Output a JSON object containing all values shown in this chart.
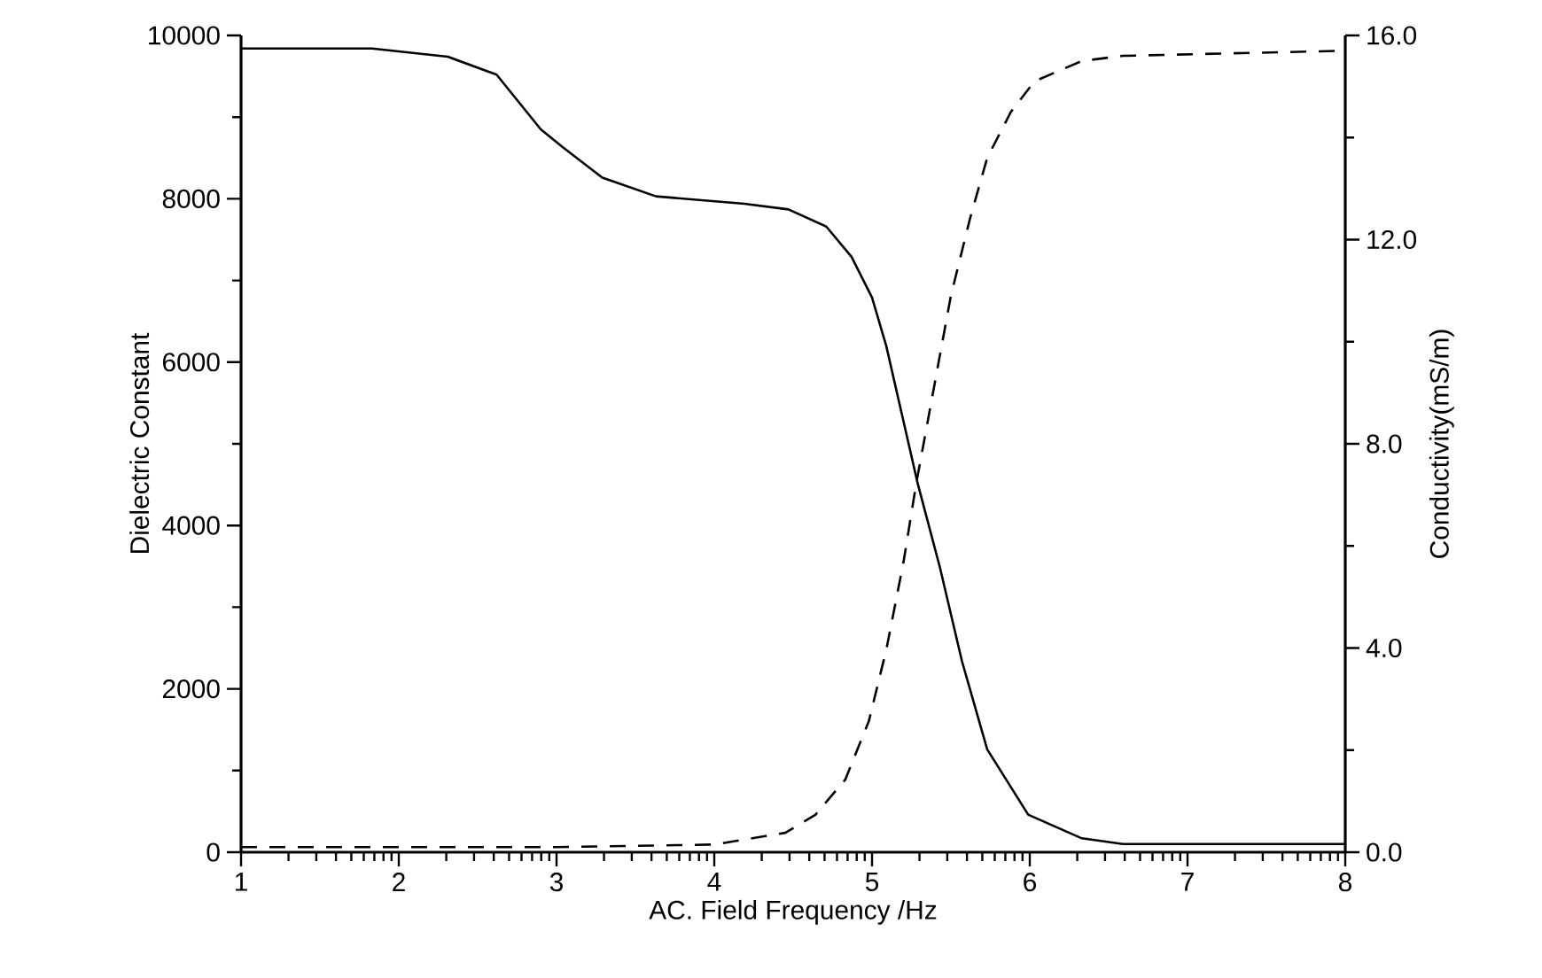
{
  "chart_data": {
    "type": "line",
    "xlabel": "AC. Field Frequency /Hz",
    "ylabel": "Dielectric Constant",
    "y2label": "Conductivity(mS/m)",
    "xlim": [
      1,
      8
    ],
    "ylim": [
      0,
      10000
    ],
    "y2lim": [
      0,
      16
    ],
    "xticks": [
      1,
      2,
      3,
      4,
      5,
      6,
      7,
      8,
      {
        "value": 1.301,
        "label": null
      },
      {
        "value": 1.477,
        "label": null
      },
      {
        "value": 1.602,
        "label": null
      },
      {
        "value": 1.699,
        "label": null
      },
      {
        "value": 1.778,
        "label": null
      },
      {
        "value": 1.845,
        "label": null
      },
      {
        "value": 1.903,
        "label": null
      },
      {
        "value": 1.954,
        "label": null
      },
      {
        "value": 2.301,
        "label": null
      },
      {
        "value": 2.477,
        "label": null
      },
      {
        "value": 2.602,
        "label": null
      },
      {
        "value": 2.699,
        "label": null
      },
      {
        "value": 2.778,
        "label": null
      },
      {
        "value": 2.845,
        "label": null
      },
      {
        "value": 2.903,
        "label": null
      },
      {
        "value": 2.954,
        "label": null
      },
      {
        "value": 3.301,
        "label": null
      },
      {
        "value": 3.477,
        "label": null
      },
      {
        "value": 3.602,
        "label": null
      },
      {
        "value": 3.699,
        "label": null
      },
      {
        "value": 3.778,
        "label": null
      },
      {
        "value": 3.845,
        "label": null
      },
      {
        "value": 3.903,
        "label": null
      },
      {
        "value": 3.954,
        "label": null
      },
      {
        "value": 4.301,
        "label": null
      },
      {
        "value": 4.477,
        "label": null
      },
      {
        "value": 4.602,
        "label": null
      },
      {
        "value": 4.699,
        "label": null
      },
      {
        "value": 4.778,
        "label": null
      },
      {
        "value": 4.845,
        "label": null
      },
      {
        "value": 4.903,
        "label": null
      },
      {
        "value": 4.954,
        "label": null
      },
      {
        "value": 5.301,
        "label": null
      },
      {
        "value": 5.477,
        "label": null
      },
      {
        "value": 5.602,
        "label": null
      },
      {
        "value": 5.699,
        "label": null
      },
      {
        "value": 5.778,
        "label": null
      },
      {
        "value": 5.845,
        "label": null
      },
      {
        "value": 5.903,
        "label": null
      },
      {
        "value": 5.954,
        "label": null
      },
      {
        "value": 6.301,
        "label": null
      },
      {
        "value": 6.477,
        "label": null
      },
      {
        "value": 6.602,
        "label": null
      },
      {
        "value": 6.699,
        "label": null
      },
      {
        "value": 6.778,
        "label": null
      },
      {
        "value": 6.845,
        "label": null
      },
      {
        "value": 6.903,
        "label": null
      },
      {
        "value": 6.954,
        "label": null
      },
      {
        "value": 7.301,
        "label": null
      },
      {
        "value": 7.477,
        "label": null
      },
      {
        "value": 7.602,
        "label": null
      },
      {
        "value": 7.699,
        "label": null
      },
      {
        "value": 7.778,
        "label": null
      },
      {
        "value": 7.845,
        "label": null
      },
      {
        "value": 7.903,
        "label": null
      },
      {
        "value": 7.954,
        "label": null
      }
    ],
    "yticks": [
      0,
      2000,
      4000,
      6000,
      8000,
      10000,
      {
        "value": 1000,
        "label": null
      },
      {
        "value": 3000,
        "label": null
      },
      {
        "value": 5000,
        "label": null
      },
      {
        "value": 7000,
        "label": null
      },
      {
        "value": 9000,
        "label": null
      }
    ],
    "y2ticks": [
      {
        "value": 0,
        "label": "0.0"
      },
      {
        "value": 4,
        "label": "4.0"
      },
      {
        "value": 8,
        "label": "8.0"
      },
      {
        "value": 12,
        "label": "12.0"
      },
      {
        "value": 16,
        "label": "16.0"
      },
      {
        "value": 2,
        "label": null
      },
      {
        "value": 6,
        "label": null
      },
      {
        "value": 10,
        "label": null
      },
      {
        "value": 14,
        "label": null
      }
    ],
    "grid": false,
    "series": [
      {
        "color": "#000000",
        "line_style": "solid",
        "x": [
          1,
          1.83,
          2.31,
          2.62,
          2.9,
          3.04,
          3.29,
          3.63,
          4.19,
          4.47,
          4.71,
          4.87,
          5.0,
          5.09,
          5.29,
          5.43,
          5.57,
          5.73,
          5.99,
          6.33,
          6.59,
          8
        ],
        "values": [
          9840,
          9840,
          9740,
          9520,
          8850,
          8630,
          8260,
          8030,
          7940,
          7870,
          7660,
          7290,
          6790,
          6200,
          4510,
          3490,
          2340,
          1260,
          460,
          170,
          100,
          100
        ]
      },
      {
        "color": "#000000",
        "line_style": "dashed",
        "axis": "y2",
        "x": [
          1,
          2,
          3,
          4,
          4.45,
          4.64,
          4.83,
          4.98,
          5.09,
          5.2,
          5.28,
          5.39,
          5.5,
          5.62,
          5.73,
          5.88,
          6.03,
          6.33,
          6.59,
          8
        ],
        "values": [
          0.1,
          0.1,
          0.1,
          0.15,
          0.38,
          0.73,
          1.42,
          2.57,
          3.96,
          5.69,
          7.22,
          9.06,
          10.9,
          12.4,
          13.6,
          14.5,
          15.1,
          15.5,
          15.6,
          15.7
        ]
      }
    ]
  }
}
